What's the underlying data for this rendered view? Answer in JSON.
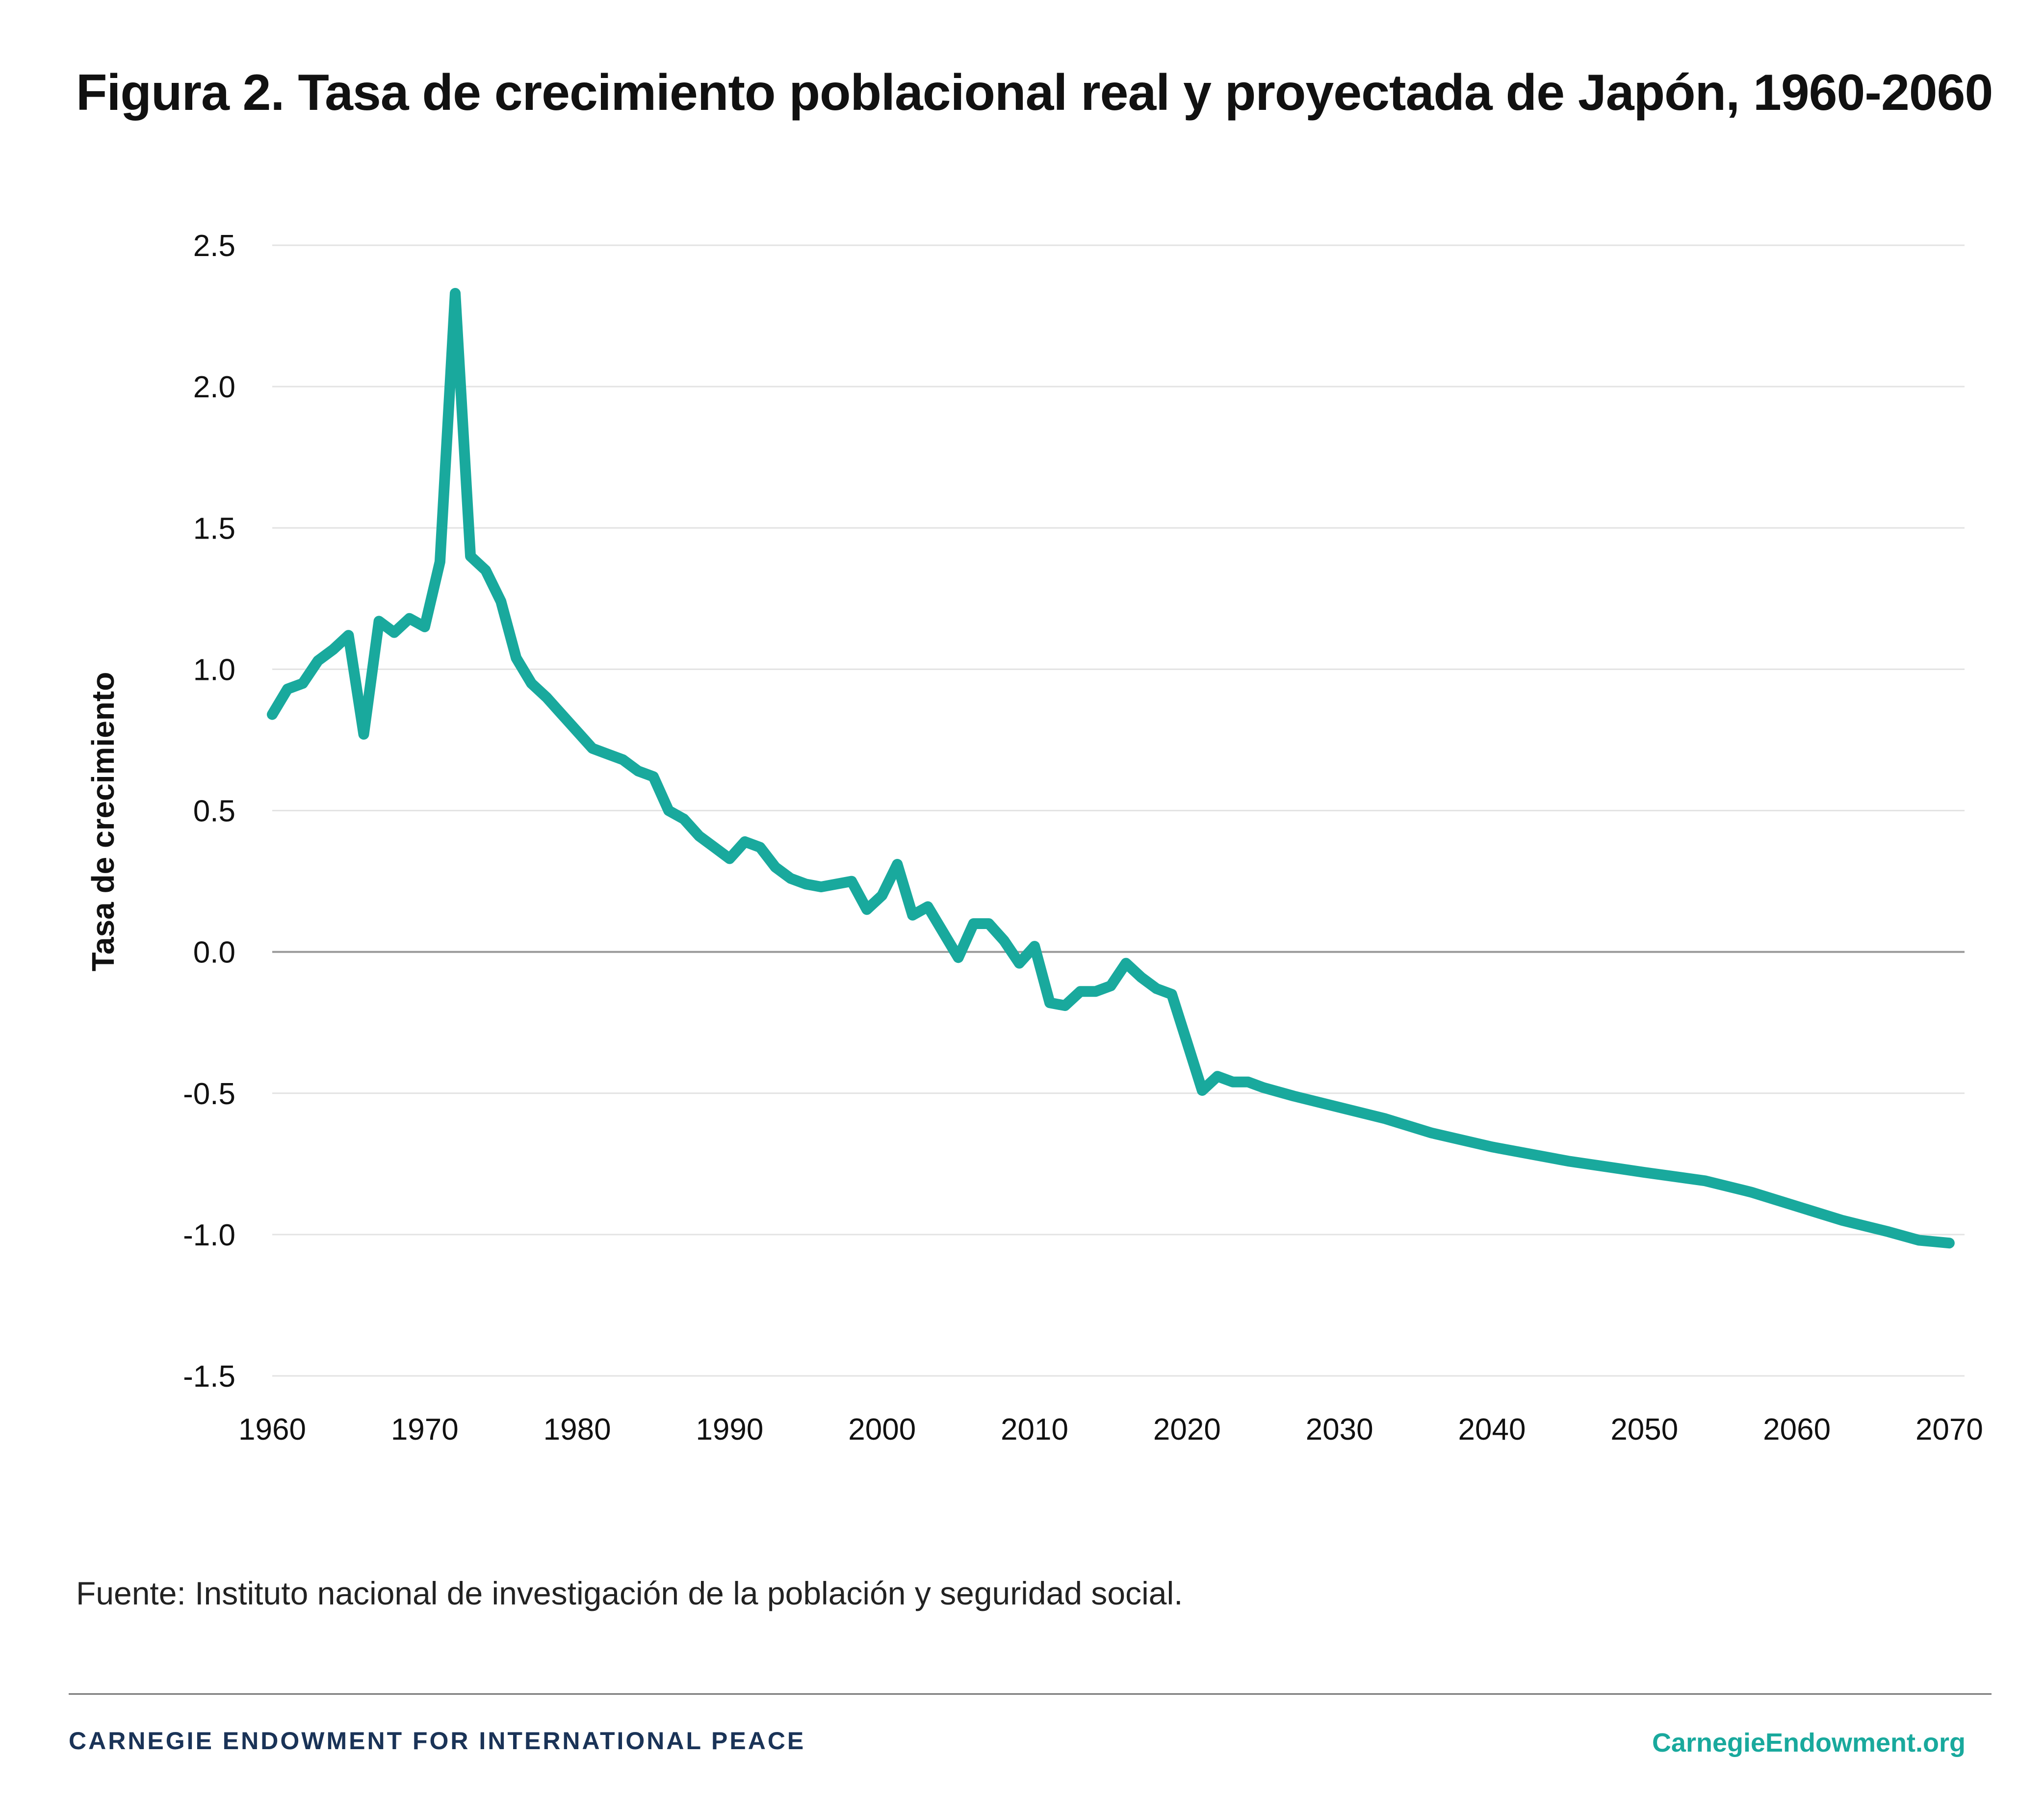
{
  "title": "Figura 2. Tasa de crecimiento poblacional real y proyectada de Japón, 1960-2060",
  "source": "Fuente: Instituto nacional de investigación de la población y seguridad social.",
  "footer": {
    "organization": "CARNEGIE ENDOWMENT FOR INTERNATIONAL PEACE",
    "url": "CarnegieEndowment.org"
  },
  "colors": {
    "line": "#19a99d",
    "grid": "#e3e3e3",
    "zero_line": "#999999",
    "org_text": "#1a3357",
    "url_text": "#19a99d"
  },
  "chart_data": {
    "type": "line",
    "title": "Figura 2. Tasa de crecimiento poblacional real y proyectada de Japón, 1960-2060",
    "xlabel": "",
    "ylabel": "Tasa de crecimiento",
    "xlim": [
      1960,
      2071
    ],
    "ylim": [
      -1.5,
      2.5
    ],
    "x_ticks": [
      1960,
      1970,
      1980,
      1990,
      2000,
      2010,
      2020,
      2030,
      2040,
      2050,
      2060,
      2070
    ],
    "x_tick_labels": [
      "1960",
      "1970",
      "1980",
      "1990",
      "2000",
      "2010",
      "2020",
      "2030",
      "2040",
      "2050",
      "2060",
      "2070"
    ],
    "y_ticks": [
      2.5,
      2.0,
      1.5,
      1.0,
      0.5,
      0.0,
      -0.5,
      -1.0,
      -1.5
    ],
    "y_tick_labels": [
      "2.5",
      "2.0",
      "1.5",
      "1.0",
      "0.5",
      "0.0",
      "-0.5",
      "-1.0",
      "-1.5"
    ],
    "grid": true,
    "legend": "none",
    "series": [
      {
        "x": [
          1960,
          1961,
          1962,
          1963,
          1964,
          1965,
          1966,
          1967,
          1968,
          1969,
          1970,
          1971,
          1972,
          1973,
          1974,
          1975,
          1976,
          1977,
          1978,
          1979,
          1980,
          1981,
          1982,
          1983,
          1984,
          1985,
          1986,
          1987,
          1988,
          1989,
          1990,
          1991,
          1992,
          1993,
          1994,
          1995,
          1996,
          1997,
          1998,
          1999,
          2000,
          2001,
          2002,
          2003,
          2004,
          2005,
          2006,
          2007,
          2008,
          2009,
          2010,
          2011,
          2012,
          2013,
          2014,
          2015,
          2016,
          2017,
          2018,
          2019,
          2020,
          2021,
          2022,
          2023,
          2024,
          2025,
          2027,
          2030,
          2033,
          2036,
          2040,
          2045,
          2050,
          2054,
          2057,
          2060,
          2063,
          2066,
          2068,
          2070
        ],
        "values": [
          0.84,
          0.93,
          0.95,
          1.03,
          1.07,
          1.12,
          0.77,
          1.17,
          1.13,
          1.18,
          1.15,
          1.38,
          2.33,
          1.4,
          1.35,
          1.24,
          1.04,
          0.95,
          0.9,
          0.84,
          0.78,
          0.72,
          0.7,
          0.68,
          0.64,
          0.62,
          0.5,
          0.47,
          0.41,
          0.37,
          0.33,
          0.39,
          0.37,
          0.3,
          0.26,
          0.24,
          0.23,
          0.24,
          0.25,
          0.15,
          0.2,
          0.31,
          0.13,
          0.16,
          0.07,
          -0.02,
          0.1,
          0.1,
          0.04,
          -0.04,
          0.02,
          -0.18,
          -0.19,
          -0.14,
          -0.14,
          -0.12,
          -0.04,
          -0.09,
          -0.13,
          -0.15,
          -0.32,
          -0.49,
          -0.44,
          -0.46,
          -0.46,
          -0.48,
          -0.51,
          -0.55,
          -0.59,
          -0.64,
          -0.69,
          -0.74,
          -0.78,
          -0.81,
          -0.85,
          -0.9,
          -0.95,
          -0.99,
          -1.02,
          -1.03
        ]
      }
    ]
  }
}
